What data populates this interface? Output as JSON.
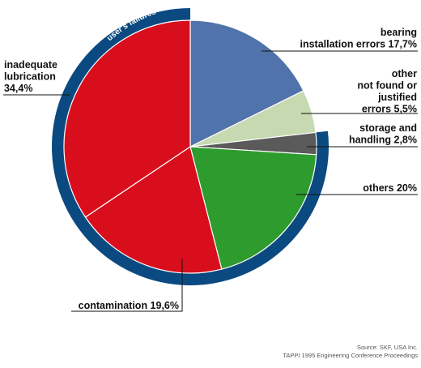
{
  "chart_data": {
    "type": "pie",
    "slices": [
      {
        "label_lines": [
          "bearing",
          "installation errors 17,7%"
        ],
        "value": 17.7,
        "color": "#4f73aa"
      },
      {
        "label_lines": [
          "other",
          "not found or",
          "justified",
          "errors 5,5%"
        ],
        "value": 5.5,
        "color": "#c6d9b0"
      },
      {
        "label_lines": [
          "storage and",
          "handling 2,8%"
        ],
        "value": 2.8,
        "color": "#5a5a5a"
      },
      {
        "label_lines": [
          "others 20%"
        ],
        "value": 20.0,
        "color": "#2e9b2e"
      },
      {
        "label_lines": [
          "contamination 19,6%"
        ],
        "value": 19.6,
        "color": "#d90e1c"
      },
      {
        "label_lines": [
          "inadequate",
          "lubrication",
          "34,4%"
        ],
        "value": 34.4,
        "color": "#d90e1c"
      }
    ],
    "group_band": {
      "label": "user's failures",
      "color": "#0b4a80"
    },
    "source_lines": [
      "Source: SKF, USA Inc.",
      "TAPPI 1995 Engineering Conference Proceedings"
    ]
  }
}
